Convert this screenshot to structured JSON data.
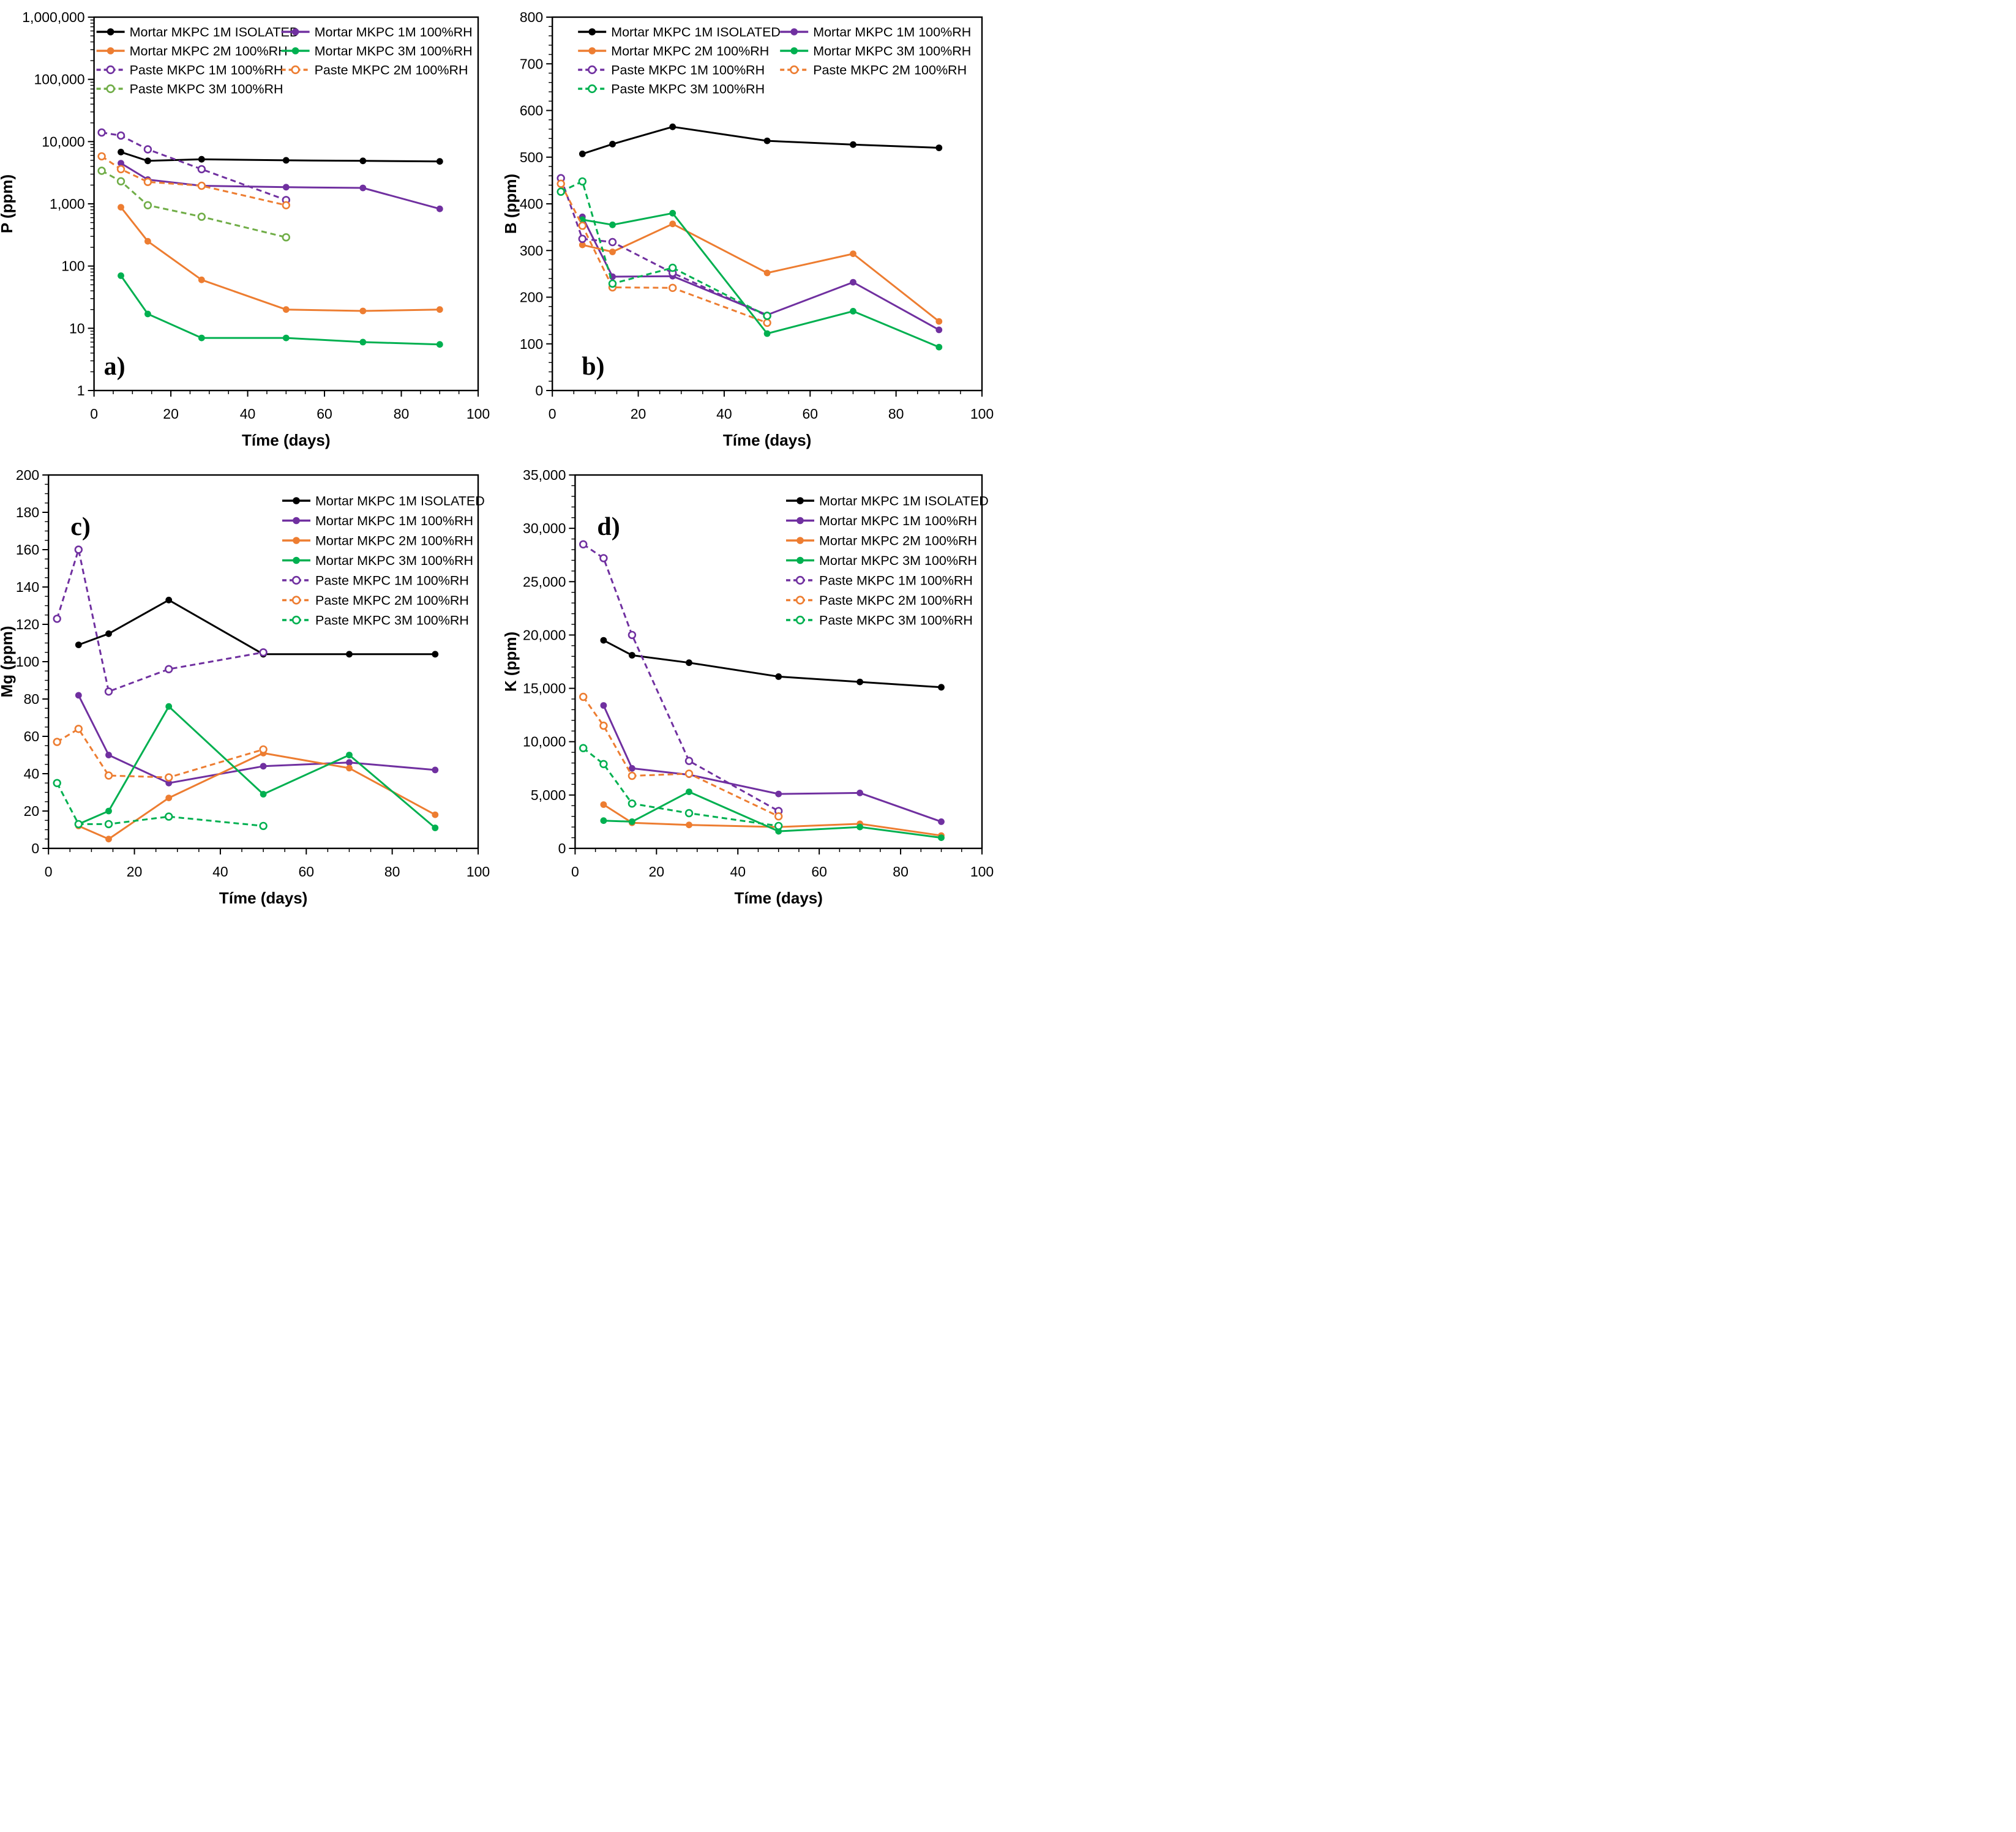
{
  "chart_data": [
    {
      "type": "line",
      "panel_label": "a)",
      "panel_label_pos": "bottom-left",
      "xlabel": "Tíme (days)",
      "ylabel": "P (ppm)",
      "x_range": [
        0,
        100
      ],
      "x_ticks": [
        0,
        20,
        40,
        60,
        80,
        100
      ],
      "x_minor_step": 5,
      "y_scale": "log",
      "y_range": [
        1,
        1000000
      ],
      "y_ticks": [
        1,
        10,
        100,
        1000,
        10000,
        100000,
        1000000
      ],
      "y_tick_labels": [
        "1",
        "10",
        "100",
        "1,000",
        "10,000",
        "100,000",
        "1,000,000"
      ],
      "grid": false,
      "legend_layout": "two-column",
      "series": [
        {
          "name": "Mortar MKPC 1M ISOLATED",
          "color": "#000000",
          "line": "solid",
          "marker": "filled",
          "points": [
            [
              7,
              6800
            ],
            [
              14,
              4900
            ],
            [
              28,
              5200
            ],
            [
              50,
              5000
            ],
            [
              70,
              4900
            ],
            [
              90,
              4800
            ]
          ]
        },
        {
          "name": "Mortar MKPC 1M 100%RH",
          "color": "#7030A0",
          "line": "solid",
          "marker": "filled",
          "points": [
            [
              7,
              4500
            ],
            [
              14,
              2450
            ],
            [
              28,
              1950
            ],
            [
              50,
              1850
            ],
            [
              70,
              1800
            ],
            [
              90,
              830
            ]
          ]
        },
        {
          "name": "Mortar MKPC 2M 100%RH",
          "color": "#ED7D31",
          "line": "solid",
          "marker": "filled",
          "points": [
            [
              7,
              880
            ],
            [
              14,
              250
            ],
            [
              28,
              60
            ],
            [
              50,
              20
            ],
            [
              70,
              19
            ],
            [
              90,
              20
            ]
          ]
        },
        {
          "name": "Mortar MKPC 3M 100%RH",
          "color": "#00B050",
          "line": "solid",
          "marker": "filled",
          "points": [
            [
              7,
              70
            ],
            [
              14,
              17
            ],
            [
              28,
              7
            ],
            [
              50,
              7
            ],
            [
              70,
              6
            ],
            [
              90,
              5.5
            ]
          ]
        },
        {
          "name": "Paste MKPC 1M 100%RH",
          "color": "#7030A0",
          "line": "dashed",
          "marker": "open",
          "points": [
            [
              2,
              14000
            ],
            [
              7,
              12500
            ],
            [
              14,
              7500
            ],
            [
              28,
              3600
            ],
            [
              50,
              1150
            ]
          ]
        },
        {
          "name": "Paste MKPC 2M 100%RH",
          "color": "#ED7D31",
          "line": "dashed",
          "marker": "open",
          "points": [
            [
              2,
              5800
            ],
            [
              7,
              3600
            ],
            [
              14,
              2250
            ],
            [
              28,
              1950
            ],
            [
              50,
              950
            ]
          ]
        },
        {
          "name": "Paste MKPC 3M 100%RH",
          "color": "#70AD47",
          "line": "dashed",
          "marker": "open",
          "points": [
            [
              2,
              3400
            ],
            [
              7,
              2300
            ],
            [
              14,
              950
            ],
            [
              28,
              620
            ],
            [
              50,
              290
            ]
          ]
        }
      ]
    },
    {
      "type": "line",
      "panel_label": "b)",
      "panel_label_pos": "bottom-left",
      "xlabel": "Tíme (days)",
      "ylabel": "B (ppm)",
      "x_range": [
        0,
        100
      ],
      "x_ticks": [
        0,
        20,
        40,
        60,
        80,
        100
      ],
      "x_minor_step": 5,
      "y_scale": "linear",
      "y_range": [
        0,
        800
      ],
      "y_minor_step": 20,
      "y_ticks": [
        0,
        100,
        200,
        300,
        400,
        500,
        600,
        700,
        800
      ],
      "y_tick_labels": [
        "0",
        "100",
        "200",
        "300",
        "400",
        "500",
        "600",
        "700",
        "800"
      ],
      "grid": false,
      "legend_layout": "two-column",
      "series": [
        {
          "name": "Mortar MKPC 1M ISOLATED",
          "color": "#000000",
          "line": "solid",
          "marker": "filled",
          "points": [
            [
              7,
              507
            ],
            [
              14,
              528
            ],
            [
              28,
              565
            ],
            [
              50,
              535
            ],
            [
              70,
              527
            ],
            [
              90,
              520
            ]
          ]
        },
        {
          "name": "Mortar MKPC 1M 100%RH",
          "color": "#7030A0",
          "line": "solid",
          "marker": "filled",
          "points": [
            [
              7,
              372
            ],
            [
              14,
              244
            ],
            [
              28,
              245
            ],
            [
              50,
              162
            ],
            [
              70,
              232
            ],
            [
              90,
              130
            ]
          ]
        },
        {
          "name": "Mortar MKPC 2M 100%RH",
          "color": "#ED7D31",
          "line": "solid",
          "marker": "filled",
          "points": [
            [
              7,
              312
            ],
            [
              14,
              297
            ],
            [
              28,
              357
            ],
            [
              50,
              252
            ],
            [
              70,
              293
            ],
            [
              90,
              148
            ]
          ]
        },
        {
          "name": "Mortar MKPC 3M 100%RH",
          "color": "#00B050",
          "line": "solid",
          "marker": "filled",
          "points": [
            [
              7,
              366
            ],
            [
              14,
              355
            ],
            [
              28,
              380
            ],
            [
              50,
              122
            ],
            [
              70,
              170
            ],
            [
              90,
              93
            ]
          ]
        },
        {
          "name": "Paste MKPC 1M 100%RH",
          "color": "#7030A0",
          "line": "dashed",
          "marker": "open",
          "points": [
            [
              2,
              455
            ],
            [
              7,
              325
            ],
            [
              14,
              318
            ],
            [
              28,
              252
            ],
            [
              50,
              160
            ]
          ]
        },
        {
          "name": "Paste MKPC 2M 100%RH",
          "color": "#ED7D31",
          "line": "dashed",
          "marker": "open",
          "points": [
            [
              2,
              443
            ],
            [
              7,
              353
            ],
            [
              14,
              221
            ],
            [
              28,
              220
            ],
            [
              50,
              145
            ]
          ]
        },
        {
          "name": "Paste MKPC 3M 100%RH",
          "color": "#00B050",
          "line": "dashed",
          "marker": "open",
          "points": [
            [
              2,
              426
            ],
            [
              7,
              448
            ],
            [
              14,
              229
            ],
            [
              28,
              263
            ],
            [
              50,
              160
            ]
          ]
        }
      ]
    },
    {
      "type": "line",
      "panel_label": "c)",
      "panel_label_pos": "top-left",
      "xlabel": "Tíme (days)",
      "ylabel": "Mg (ppm)",
      "x_range": [
        0,
        100
      ],
      "x_ticks": [
        0,
        20,
        40,
        60,
        80,
        100
      ],
      "x_minor_step": 5,
      "y_scale": "linear",
      "y_range": [
        0,
        200
      ],
      "y_minor_step": 5,
      "y_ticks": [
        0,
        20,
        40,
        60,
        80,
        100,
        120,
        140,
        160,
        180,
        200
      ],
      "y_tick_labels": [
        "0",
        "20",
        "40",
        "60",
        "80",
        "100",
        "120",
        "140",
        "160",
        "180",
        "200"
      ],
      "grid": false,
      "legend_layout": "one-column",
      "series": [
        {
          "name": "Mortar MKPC 1M ISOLATED",
          "color": "#000000",
          "line": "solid",
          "marker": "filled",
          "points": [
            [
              7,
              109
            ],
            [
              14,
              115
            ],
            [
              28,
              133
            ],
            [
              50,
              104
            ],
            [
              70,
              104
            ],
            [
              90,
              104
            ]
          ]
        },
        {
          "name": "Mortar MKPC 1M 100%RH",
          "color": "#7030A0",
          "line": "solid",
          "marker": "filled",
          "points": [
            [
              7,
              82
            ],
            [
              14,
              50
            ],
            [
              28,
              35
            ],
            [
              50,
              44
            ],
            [
              70,
              46
            ],
            [
              90,
              42
            ]
          ]
        },
        {
          "name": "Mortar MKPC 2M 100%RH",
          "color": "#ED7D31",
          "line": "solid",
          "marker": "filled",
          "points": [
            [
              7,
              12
            ],
            [
              14,
              5
            ],
            [
              28,
              27
            ],
            [
              50,
              51
            ],
            [
              70,
              43
            ],
            [
              90,
              18
            ]
          ]
        },
        {
          "name": "Mortar MKPC 3M 100%RH",
          "color": "#00B050",
          "line": "solid",
          "marker": "filled",
          "points": [
            [
              7,
              13
            ],
            [
              14,
              20
            ],
            [
              28,
              76
            ],
            [
              50,
              29
            ],
            [
              70,
              50
            ],
            [
              90,
              11
            ]
          ]
        },
        {
          "name": "Paste MKPC 1M 100%RH",
          "color": "#7030A0",
          "line": "dashed",
          "marker": "open",
          "points": [
            [
              2,
              123
            ],
            [
              7,
              160
            ],
            [
              14,
              84
            ],
            [
              28,
              96
            ],
            [
              50,
              105
            ]
          ]
        },
        {
          "name": "Paste MKPC 2M 100%RH",
          "color": "#ED7D31",
          "line": "dashed",
          "marker": "open",
          "points": [
            [
              2,
              57
            ],
            [
              7,
              64
            ],
            [
              14,
              39
            ],
            [
              28,
              38
            ],
            [
              50,
              53
            ]
          ]
        },
        {
          "name": "Paste MKPC 3M 100%RH",
          "color": "#00B050",
          "line": "dashed",
          "marker": "open",
          "points": [
            [
              2,
              35
            ],
            [
              7,
              13
            ],
            [
              14,
              13
            ],
            [
              28,
              17
            ],
            [
              50,
              12
            ]
          ]
        }
      ]
    },
    {
      "type": "line",
      "panel_label": "d)",
      "panel_label_pos": "top-left",
      "xlabel": "Tíme (days)",
      "ylabel": "K (ppm)",
      "x_range": [
        0,
        100
      ],
      "x_ticks": [
        0,
        20,
        40,
        60,
        80,
        100
      ],
      "x_minor_step": 5,
      "y_scale": "linear",
      "y_range": [
        0,
        35000
      ],
      "y_minor_step": 1000,
      "y_ticks": [
        0,
        5000,
        10000,
        15000,
        20000,
        25000,
        30000,
        35000
      ],
      "y_tick_labels": [
        "0",
        "5,000",
        "10,000",
        "15,000",
        "20,000",
        "25,000",
        "30,000",
        "35,000"
      ],
      "grid": false,
      "legend_layout": "one-column",
      "series": [
        {
          "name": "Mortar MKPC 1M ISOLATED",
          "color": "#000000",
          "line": "solid",
          "marker": "filled",
          "points": [
            [
              7,
              19500
            ],
            [
              14,
              18100
            ],
            [
              28,
              17400
            ],
            [
              50,
              16100
            ],
            [
              70,
              15600
            ],
            [
              90,
              15100
            ]
          ]
        },
        {
          "name": "Mortar MKPC 1M 100%RH",
          "color": "#7030A0",
          "line": "solid",
          "marker": "filled",
          "points": [
            [
              7,
              13400
            ],
            [
              14,
              7500
            ],
            [
              28,
              6900
            ],
            [
              50,
              5100
            ],
            [
              70,
              5200
            ],
            [
              90,
              2500
            ]
          ]
        },
        {
          "name": "Mortar MKPC 2M 100%RH",
          "color": "#ED7D31",
          "line": "solid",
          "marker": "filled",
          "points": [
            [
              7,
              4100
            ],
            [
              14,
              2400
            ],
            [
              28,
              2200
            ],
            [
              50,
              2000
            ],
            [
              70,
              2300
            ],
            [
              90,
              1200
            ]
          ]
        },
        {
          "name": "Mortar MKPC 3M 100%RH",
          "color": "#00B050",
          "line": "solid",
          "marker": "filled",
          "points": [
            [
              7,
              2600
            ],
            [
              14,
              2500
            ],
            [
              28,
              5300
            ],
            [
              50,
              1600
            ],
            [
              70,
              2000
            ],
            [
              90,
              1000
            ]
          ]
        },
        {
          "name": "Paste MKPC 1M 100%RH",
          "color": "#7030A0",
          "line": "dashed",
          "marker": "open",
          "points": [
            [
              2,
              28500
            ],
            [
              7,
              27200
            ],
            [
              14,
              20000
            ],
            [
              28,
              8200
            ],
            [
              50,
              3500
            ]
          ]
        },
        {
          "name": "Paste MKPC 2M 100%RH",
          "color": "#ED7D31",
          "line": "dashed",
          "marker": "open",
          "points": [
            [
              2,
              14200
            ],
            [
              7,
              11500
            ],
            [
              14,
              6800
            ],
            [
              28,
              7000
            ],
            [
              50,
              3000
            ]
          ]
        },
        {
          "name": "Paste MKPC 3M 100%RH",
          "color": "#00B050",
          "line": "dashed",
          "marker": "open",
          "points": [
            [
              2,
              9400
            ],
            [
              7,
              7900
            ],
            [
              14,
              4200
            ],
            [
              28,
              3300
            ],
            [
              50,
              2100
            ]
          ]
        }
      ]
    }
  ]
}
